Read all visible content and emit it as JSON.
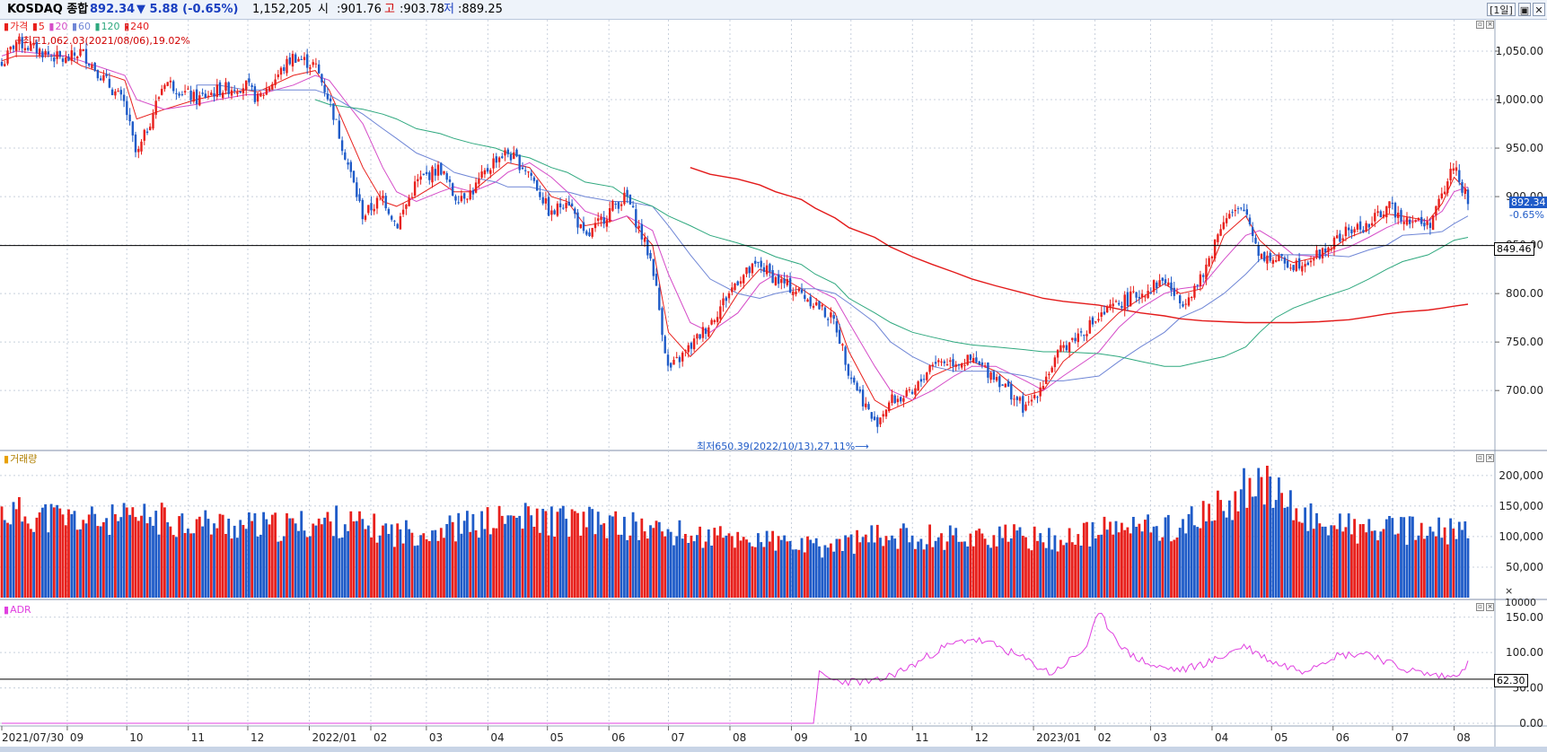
{
  "header": {
    "name": "KOSDAQ 종합",
    "price": "892.34",
    "change": "▼ 5.88 (-0.65%)",
    "volume": "1,152,205",
    "open_label": "시",
    "open_value": ":901.76",
    "high_label": "고",
    "high_value": ":903.78",
    "low_label": "저",
    "low_value": ":889.25",
    "period_button": "[1일]",
    "restore_button": "▣",
    "close_button": "✕"
  },
  "price_panel": {
    "legend": {
      "price": "가격",
      "ma5": "5",
      "ma20": "20",
      "ma60": "60",
      "ma120": "120",
      "ma240": "240"
    },
    "high_note": "최고1,062.03(2021/08/06),19.02%",
    "low_note": "최저650.39(2022/10/13),27.11%",
    "current_tag": "892.34",
    "current_change": "-0.65%",
    "hline_tag": "849.46"
  },
  "volume_panel": {
    "title": "거래량",
    "unit": "× 10000"
  },
  "adr_panel": {
    "title": "ADR",
    "hline_tag": "62.30"
  },
  "colors": {
    "up": "#e8201c",
    "down": "#1f5bc8",
    "ma5": "#e8201c",
    "ma20": "#d54cc8",
    "ma60": "#6f86d6",
    "ma120": "#2ea87e",
    "ma240": "#e31a1a",
    "adr": "#e040e0"
  },
  "chart_data": [
    {
      "type": "candlestick",
      "title": "KOSDAQ 종합",
      "yticks": [
        "700.00",
        "750.00",
        "800.00",
        "850.00",
        "900.00",
        "950.00",
        "1,000.00",
        "1,050.00"
      ],
      "ylim": [
        640,
        1075
      ],
      "x_tick_labels": [
        "2021/07/30",
        "09",
        "10",
        "11",
        "12",
        "2022/01",
        "02",
        "03",
        "04",
        "05",
        "06",
        "07",
        "08",
        "09",
        "10",
        "11",
        "12",
        "2023/01",
        "02",
        "03",
        "04",
        "05",
        "06",
        "07",
        "08"
      ],
      "close_path": {
        "x": [
          "2021/07/30",
          "2021/08/06",
          "2021/08/31",
          "2021/09/08",
          "2021/09/30",
          "2021/10/06",
          "2021/10/20",
          "2021/11/05",
          "2021/11/16",
          "2021/11/30",
          "2021/12/06",
          "2021/12/24",
          "2022/01/04",
          "2022/01/11",
          "2022/01/28",
          "2022/02/07",
          "2022/02/14",
          "2022/02/24",
          "2022/03/08",
          "2022/03/15",
          "2022/03/24",
          "2022/04/05",
          "2022/04/11",
          "2022/04/22",
          "2022/05/03",
          "2022/05/11",
          "2022/05/20",
          "2022/06/03",
          "2022/06/10",
          "2022/06/23",
          "2022/07/01",
          "2022/07/12",
          "2022/07/22",
          "2022/08/05",
          "2022/08/16",
          "2022/08/24",
          "2022/09/06",
          "2022/09/13",
          "2022/09/23",
          "2022/09/30",
          "2022/10/13",
          "2022/10/21",
          "2022/11/01",
          "2022/11/11",
          "2022/11/22",
          "2022/12/01",
          "2022/12/13",
          "2022/12/28",
          "2023/01/06",
          "2023/01/16",
          "2023/02/03",
          "2023/02/13",
          "2023/02/24",
          "2023/03/08",
          "2023/03/16",
          "2023/03/27",
          "2023/04/07",
          "2023/04/18",
          "2023/04/25",
          "2023/05/03",
          "2023/05/12",
          "2023/05/25",
          "2023/06/09",
          "2023/06/19",
          "2023/06/28",
          "2023/07/06",
          "2023/07/19",
          "2023/07/26",
          "2023/08/01",
          "2023/08/08"
        ],
        "close": [
          1035,
          1060,
          1040,
          1050,
          995,
          940,
          1020,
          1000,
          1010,
          1015,
          1000,
          1045,
          1035,
          1000,
          880,
          900,
          870,
          915,
          930,
          900,
          905,
          940,
          945,
          925,
          880,
          900,
          855,
          890,
          900,
          830,
          720,
          745,
          770,
          815,
          830,
          815,
          800,
          790,
          770,
          720,
          665,
          690,
          695,
          730,
          730,
          730,
          715,
          680,
          710,
          745,
          775,
          790,
          800,
          815,
          790,
          815,
          880,
          885,
          840,
          835,
          830,
          840,
          865,
          870,
          890,
          880,
          870,
          900,
          935,
          892.34
        ]
      },
      "moving_averages": [
        {
          "name": "5",
          "values": [
            1040,
            1045,
            1045,
            1035,
            1020,
            980,
            990,
            1000,
            1005,
            1010,
            1008,
            1025,
            1030,
            1010,
            930,
            895,
            890,
            900,
            915,
            905,
            905,
            925,
            935,
            930,
            900,
            895,
            870,
            875,
            880,
            850,
            760,
            735,
            755,
            800,
            825,
            820,
            805,
            795,
            780,
            740,
            690,
            680,
            690,
            715,
            725,
            730,
            720,
            695,
            700,
            730,
            760,
            780,
            795,
            810,
            800,
            805,
            860,
            880,
            855,
            840,
            832,
            838,
            858,
            866,
            882,
            880,
            875,
            893,
            920,
            905
          ]
        },
        {
          "name": "20",
          "values": [
            1045,
            1050,
            1045,
            1040,
            1025,
            1000,
            990,
            995,
            1000,
            1005,
            1005,
            1015,
            1025,
            1020,
            975,
            930,
            905,
            895,
            905,
            910,
            905,
            915,
            925,
            935,
            920,
            905,
            885,
            875,
            880,
            865,
            820,
            770,
            760,
            780,
            810,
            820,
            815,
            805,
            795,
            770,
            725,
            700,
            690,
            700,
            715,
            725,
            725,
            710,
            700,
            715,
            740,
            765,
            785,
            800,
            805,
            808,
            835,
            860,
            865,
            855,
            840,
            838,
            848,
            858,
            868,
            875,
            875,
            885,
            905,
            910
          ]
        },
        {
          "name": "60",
          "start_x": "2021/11/16",
          "values": [
            null,
            null,
            null,
            null,
            null,
            null,
            null,
            1015,
            1015,
            1010,
            1010,
            1010,
            1010,
            1005,
            985,
            970,
            960,
            945,
            935,
            925,
            920,
            915,
            910,
            910,
            905,
            905,
            900,
            895,
            895,
            890,
            870,
            840,
            815,
            800,
            795,
            800,
            805,
            805,
            800,
            790,
            770,
            750,
            735,
            725,
            720,
            720,
            720,
            715,
            710,
            710,
            715,
            730,
            745,
            760,
            775,
            785,
            800,
            820,
            835,
            840,
            840,
            840,
            838,
            845,
            850,
            860,
            862,
            864,
            872,
            880
          ]
        },
        {
          "name": "120",
          "start_x": "2022/01/04",
          "values": [
            null,
            null,
            null,
            null,
            null,
            null,
            null,
            null,
            null,
            null,
            null,
            null,
            1000,
            995,
            990,
            985,
            980,
            970,
            965,
            960,
            955,
            950,
            945,
            940,
            930,
            925,
            915,
            910,
            900,
            890,
            880,
            870,
            860,
            852,
            845,
            838,
            830,
            820,
            810,
            795,
            780,
            770,
            760,
            755,
            750,
            747,
            745,
            742,
            740,
            740,
            738,
            735,
            730,
            725,
            725,
            730,
            735,
            745,
            760,
            775,
            785,
            795,
            805,
            815,
            825,
            833,
            840,
            848,
            855,
            858
          ]
        },
        {
          "name": "240",
          "start_x": "2022/07/12",
          "values": [
            null,
            null,
            null,
            null,
            null,
            null,
            null,
            null,
            null,
            null,
            null,
            null,
            null,
            null,
            null,
            null,
            null,
            null,
            null,
            null,
            null,
            null,
            null,
            null,
            null,
            null,
            null,
            null,
            null,
            null,
            null,
            930,
            923,
            918,
            912,
            905,
            897,
            888,
            878,
            868,
            858,
            848,
            838,
            830,
            822,
            815,
            808,
            800,
            795,
            792,
            788,
            784,
            780,
            777,
            774,
            772,
            771,
            770,
            770,
            770,
            770,
            771,
            773,
            776,
            779,
            781,
            783,
            785,
            787,
            789
          ]
        }
      ],
      "high_annotation": {
        "label": "최고1,062.03(2021/08/06),19.02%",
        "value": 1062.03
      },
      "low_annotation": {
        "label": "최저650.39(2022/10/13),27.11%",
        "value": 650.39
      },
      "reference_line": 849.46,
      "last_price": 892.34,
      "last_change_pct": "-0.65%"
    },
    {
      "type": "bar",
      "title": "거래량",
      "yticks": [
        "50,000",
        "100,000",
        "150,000",
        "200,000"
      ],
      "y_unit": "× 10000",
      "ylim": [
        0,
        235000
      ],
      "volume_path": {
        "x": [
          "2021/07/30",
          "2021/09",
          "2021/10",
          "2021/11",
          "2021/12",
          "2022/01",
          "2022/02",
          "2022/03",
          "2022/04",
          "2022/05",
          "2022/06",
          "2022/07",
          "2022/08",
          "2022/09",
          "2022/10",
          "2022/11",
          "2022/12",
          "2023/01",
          "2023/02",
          "2023/03",
          "2023/04",
          "2023/04/20",
          "2023/05",
          "2023/06",
          "2023/07",
          "2023/08"
        ],
        "values": [
          140000,
          125000,
          130000,
          120000,
          115000,
          125000,
          105000,
          115000,
          130000,
          125000,
          115000,
          100000,
          95000,
          80000,
          100000,
          100000,
          100000,
          95000,
          115000,
          115000,
          160000,
          200000,
          135000,
          110000,
          110000,
          105000
        ]
      }
    },
    {
      "type": "line",
      "title": "ADR",
      "yticks": [
        "0.00",
        "50.00",
        "100.00",
        "150.00"
      ],
      "ylim": [
        0,
        170
      ],
      "reference_line": 62.3,
      "series": [
        {
          "name": "ADR",
          "x": [
            "2021/07/30",
            "2022/09/13",
            "2022/09/14",
            "2022/09/23",
            "2022/10/13",
            "2022/10/31",
            "2022/11/15",
            "2022/11/30",
            "2022/12/13",
            "2022/12/28",
            "2023/01/10",
            "2023/01/27",
            "2023/02/03",
            "2023/02/17",
            "2023/03/03",
            "2023/03/17",
            "2023/04/03",
            "2023/04/17",
            "2023/05/03",
            "2023/05/17",
            "2023/06/01",
            "2023/06/19",
            "2023/07/03",
            "2023/07/17",
            "2023/07/31",
            "2023/08/08"
          ],
          "values": [
            0,
            0,
            70,
            60,
            58,
            80,
            105,
            120,
            110,
            90,
            70,
            105,
            155,
            100,
            80,
            75,
            90,
            110,
            85,
            75,
            95,
            100,
            80,
            70,
            65,
            85
          ]
        }
      ]
    }
  ]
}
